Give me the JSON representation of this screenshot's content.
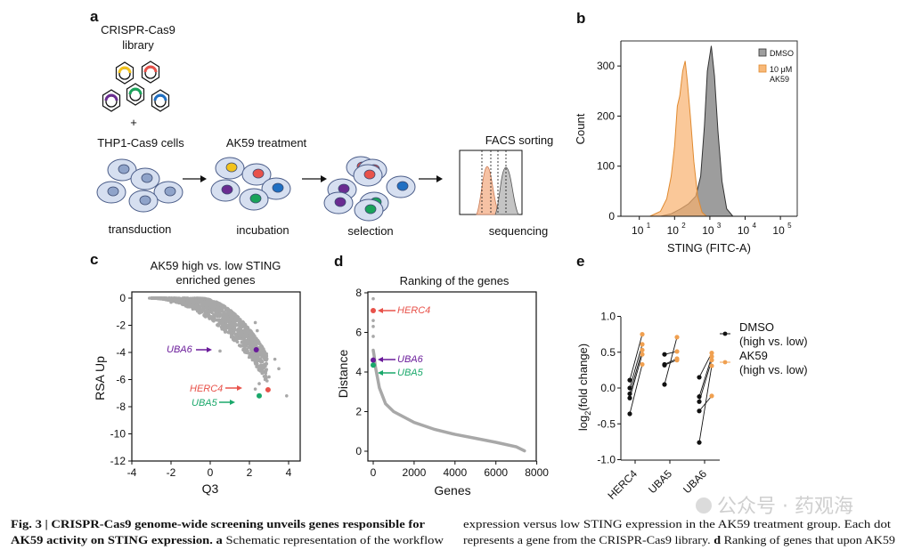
{
  "panel_a": {
    "letter": "a",
    "library_line1": "CRISPR-Cas9",
    "library_line2": "library",
    "plus": "+",
    "cells_label": "THP1-Cas9 cells",
    "treatment_label": "AK59 treatment",
    "facs_label": "FACS sorting",
    "steps": [
      "transduction",
      "incubation",
      "selection",
      "sequencing"
    ],
    "colors": {
      "yellow": "#f2c21b",
      "red": "#e8524a",
      "purple": "#6a2c91",
      "green": "#1aa35a",
      "blue": "#1f6fc2",
      "cell": "#d6dff0",
      "nucleus": "#8fa3c9"
    }
  },
  "chart_data": [
    {
      "panel": "b",
      "type": "area",
      "xlabel": "STING (FITC-A)",
      "ylabel": "Count",
      "xscale": "log",
      "xlim": [
        3,
        300000
      ],
      "ylim": [
        0,
        350
      ],
      "xticks": [
        "10^1",
        "10^2",
        "10^3",
        "10^4",
        "10^5"
      ],
      "yticks": [
        0,
        100,
        200,
        300
      ],
      "legend": "top-right",
      "series": [
        {
          "name": "DMSO",
          "color": "#9e9e9e",
          "x": [
            40,
            80,
            150,
            250,
            400,
            550,
            700,
            850,
            1100,
            1350,
            1700,
            2200,
            3000,
            4500
          ],
          "y": [
            0,
            5,
            15,
            25,
            40,
            80,
            180,
            290,
            340,
            280,
            170,
            70,
            15,
            0
          ]
        },
        {
          "name": "10 μM AK59",
          "legend_line1": "10 μM",
          "legend_line2": "AK59",
          "color": "#f5a04a",
          "x": [
            20,
            40,
            60,
            80,
            100,
            120,
            140,
            170,
            200,
            230,
            280,
            350,
            450,
            600,
            800
          ],
          "y": [
            0,
            10,
            35,
            80,
            140,
            220,
            240,
            290,
            310,
            270,
            200,
            110,
            40,
            8,
            0
          ]
        }
      ]
    },
    {
      "panel": "c",
      "type": "scatter",
      "title_line1": "AK59 high vs. low  STING",
      "title_line2": "enriched genes",
      "xlabel": "Q3",
      "ylabel": "RSA Up",
      "xlim": [
        -4,
        4.5
      ],
      "ylim": [
        -12,
        0.3
      ],
      "xticks": [
        -4,
        -2,
        0,
        2,
        4
      ],
      "yticks": [
        0,
        -2,
        -4,
        -6,
        -8,
        -10,
        -12
      ],
      "highlighted": [
        {
          "gene": "UBA6",
          "x": 2.35,
          "y": -3.8,
          "color": "#6a1b9a"
        },
        {
          "gene": "HERC4",
          "x": 2.95,
          "y": -6.75,
          "color": "#e8524a"
        },
        {
          "gene": "UBA5",
          "x": 2.5,
          "y": -7.2,
          "color": "#1aa86b"
        }
      ],
      "outliers": [
        [
          -3.1,
          0
        ],
        [
          -2.9,
          0
        ],
        [
          -2.0,
          -0.3
        ],
        [
          0.5,
          -3.9
        ],
        [
          2.3,
          -1.8
        ],
        [
          2.4,
          -2.4
        ],
        [
          3.9,
          -7.2
        ],
        [
          2.3,
          -6.7
        ],
        [
          3.5,
          -5.2
        ],
        [
          3.3,
          -4.5
        ],
        [
          2.8,
          -6.0
        ],
        [
          2.5,
          -6.3
        ],
        [
          3.0,
          -5.8
        ]
      ]
    },
    {
      "panel": "d",
      "type": "line",
      "title": "Ranking of the genes",
      "xlabel": "Genes",
      "ylabel": "Distance",
      "xlim": [
        -250,
        8000
      ],
      "ylim": [
        -0.5,
        8
      ],
      "xticks": [
        0,
        2000,
        4000,
        6000,
        8000
      ],
      "yticks": [
        0,
        2,
        4,
        6,
        8
      ],
      "x": [
        0,
        0,
        0,
        0,
        0,
        50,
        100,
        300,
        600,
        1000,
        2000,
        3000,
        4000,
        5000,
        6000,
        7000,
        7400
      ],
      "y": [
        7.7,
        6.6,
        6.3,
        5.8,
        5.1,
        4.8,
        4.3,
        3.2,
        2.4,
        2.0,
        1.45,
        1.1,
        0.85,
        0.65,
        0.45,
        0.22,
        0.02
      ],
      "highlighted": [
        {
          "gene": "HERC4",
          "x": 0,
          "y": 7.1,
          "color": "#e8524a"
        },
        {
          "gene": "UBA6",
          "x": 0,
          "y": 4.6,
          "color": "#6a1b9a"
        },
        {
          "gene": "UBA5",
          "x": 0,
          "y": 4.35,
          "color": "#1aa86b"
        }
      ]
    },
    {
      "panel": "e",
      "type": "scatter",
      "ylabel_main": "log",
      "ylabel_sub": "2",
      "ylabel_rest": "(fold change)",
      "ylim": [
        -1.0,
        1.0
      ],
      "yticks": [
        "1.0",
        "0.5",
        "0.0",
        "-0.5",
        "-1.0"
      ],
      "categories": [
        "HERC4",
        "UBA5",
        "UBA6"
      ],
      "legend": "right",
      "series": [
        {
          "name": "DMSO",
          "name_line2": "(high vs. low)",
          "color": "#111111",
          "values": [
            [
              0.11,
              0.0,
              -0.08,
              -0.14,
              -0.36
            ],
            [
              0.47,
              0.33,
              0.32,
              0.05
            ],
            [
              0.15,
              -0.12,
              -0.19,
              -0.32,
              -0.76
            ]
          ]
        },
        {
          "name": "AK59",
          "name_line2": "(high vs. low)",
          "color": "#f0a050",
          "values": [
            [
              0.75,
              0.61,
              0.53,
              0.47,
              0.33
            ],
            [
              0.51,
              0.41,
              0.39,
              0.71
            ],
            [
              0.49,
              0.44,
              0.39,
              -0.11,
              0.31
            ]
          ]
        }
      ]
    }
  ],
  "panel_letters": {
    "b": "b",
    "c": "c",
    "d": "d",
    "e": "e"
  },
  "caption": {
    "left_line1": "Fig. 3 | CRISPR-Cas9 genome-wide screening unveils genes responsible for",
    "left_line2_bold": "AK59 activity on STING expression.",
    "left_line2_a": "a",
    "left_line2_rest": "Schematic representation of the workflow",
    "right_line1": "expression versus low STING expression in the AK59 treatment group. Each dot",
    "right_line2_pre": "represents a gene from the CRISPR-Cas9 library.",
    "right_line2_d": "d",
    "right_line2_rest": "Ranking of genes that upon AK59"
  },
  "watermark": "公众号 · 药观海"
}
